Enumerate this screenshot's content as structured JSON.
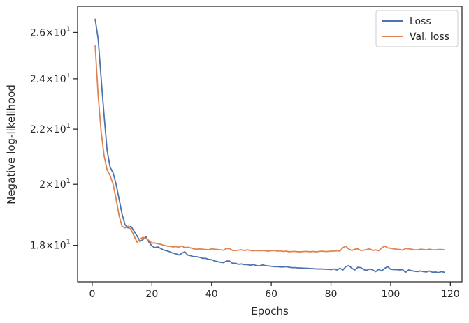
{
  "chart_data": {
    "type": "line",
    "xlabel": "Epochs",
    "ylabel": "Negative log-likelihood",
    "xlim": [
      -4.9,
      123.9
    ],
    "ylim": [
      16.9,
      27.2
    ],
    "yscale": "log",
    "xticks": [
      0,
      20,
      40,
      60,
      80,
      100,
      120
    ],
    "xtick_labels": [
      "0",
      "20",
      "40",
      "60",
      "80",
      "100",
      "120"
    ],
    "yticks": [
      18,
      20,
      22,
      24,
      26
    ],
    "ytick_labels": [
      {
        "mant": "1.8",
        "exp": "1"
      },
      {
        "mant": "2",
        "exp": "1"
      },
      {
        "mant": "2.2",
        "exp": "1"
      },
      {
        "mant": "2.4",
        "exp": "1"
      },
      {
        "mant": "2.6",
        "exp": "1"
      }
    ],
    "grid": false,
    "legend_position": "top-right",
    "series": [
      {
        "name": "Loss",
        "color": "#4C72B0",
        "x": [
          1,
          2,
          3,
          4,
          5,
          6,
          7,
          8,
          9,
          10,
          11,
          12,
          13,
          14,
          15,
          16,
          17,
          18,
          19,
          20,
          21,
          22,
          23,
          24,
          25,
          26,
          27,
          28,
          29,
          30,
          31,
          32,
          33,
          34,
          35,
          36,
          37,
          38,
          39,
          40,
          41,
          42,
          43,
          44,
          45,
          46,
          47,
          48,
          49,
          50,
          51,
          52,
          53,
          54,
          55,
          56,
          57,
          58,
          59,
          60,
          61,
          62,
          63,
          64,
          65,
          66,
          67,
          68,
          69,
          70,
          71,
          72,
          73,
          74,
          75,
          76,
          77,
          78,
          79,
          80,
          81,
          82,
          83,
          84,
          85,
          86,
          87,
          88,
          89,
          90,
          91,
          92,
          93,
          94,
          95,
          96,
          97,
          98,
          99,
          100,
          101,
          102,
          103,
          104,
          105,
          106,
          107,
          108,
          109,
          110,
          111,
          112,
          113,
          114,
          115,
          116,
          117,
          118
        ],
        "values": [
          26.6,
          25.7,
          24.0,
          22.5,
          21.2,
          20.6,
          20.4,
          20.0,
          19.5,
          19.0,
          18.65,
          18.55,
          18.6,
          18.45,
          18.3,
          18.12,
          18.18,
          18.27,
          18.1,
          17.98,
          17.93,
          17.95,
          17.9,
          17.85,
          17.83,
          17.8,
          17.76,
          17.74,
          17.7,
          17.75,
          17.8,
          17.7,
          17.68,
          17.65,
          17.65,
          17.63,
          17.6,
          17.6,
          17.57,
          17.56,
          17.52,
          17.5,
          17.48,
          17.47,
          17.52,
          17.52,
          17.45,
          17.45,
          17.42,
          17.43,
          17.41,
          17.41,
          17.39,
          17.41,
          17.38,
          17.37,
          17.4,
          17.38,
          17.37,
          17.36,
          17.35,
          17.35,
          17.34,
          17.34,
          17.35,
          17.33,
          17.32,
          17.32,
          17.31,
          17.31,
          17.3,
          17.3,
          17.29,
          17.29,
          17.28,
          17.28,
          17.28,
          17.27,
          17.27,
          17.26,
          17.28,
          17.25,
          17.3,
          17.25,
          17.35,
          17.38,
          17.3,
          17.25,
          17.33,
          17.32,
          17.26,
          17.24,
          17.28,
          17.25,
          17.2,
          17.27,
          17.22,
          17.3,
          17.35,
          17.27,
          17.26,
          17.26,
          17.25,
          17.26,
          17.18,
          17.25,
          17.23,
          17.21,
          17.2,
          17.22,
          17.2,
          17.19,
          17.22,
          17.18,
          17.19,
          17.17,
          17.2,
          17.18
        ]
      },
      {
        "name": "Val. loss",
        "color": "#DD8452",
        "x": [
          1,
          2,
          3,
          4,
          5,
          6,
          7,
          8,
          9,
          10,
          11,
          12,
          13,
          14,
          15,
          16,
          17,
          18,
          19,
          20,
          21,
          22,
          23,
          24,
          25,
          26,
          27,
          28,
          29,
          30,
          31,
          32,
          33,
          34,
          35,
          36,
          37,
          38,
          39,
          40,
          41,
          42,
          43,
          44,
          45,
          46,
          47,
          48,
          49,
          50,
          51,
          52,
          53,
          54,
          55,
          56,
          57,
          58,
          59,
          60,
          61,
          62,
          63,
          64,
          65,
          66,
          67,
          68,
          69,
          70,
          71,
          72,
          73,
          74,
          75,
          76,
          77,
          78,
          79,
          80,
          81,
          82,
          83,
          84,
          85,
          86,
          87,
          88,
          89,
          90,
          91,
          92,
          93,
          94,
          95,
          96,
          97,
          98,
          99,
          100,
          101,
          102,
          103,
          104,
          105,
          106,
          107,
          108,
          109,
          110,
          111,
          112,
          113,
          114,
          115,
          116,
          117,
          118
        ],
        "values": [
          25.4,
          23.3,
          21.9,
          21.0,
          20.5,
          20.3,
          20.0,
          19.5,
          18.95,
          18.6,
          18.55,
          18.6,
          18.5,
          18.3,
          18.1,
          18.2,
          18.25,
          18.22,
          18.15,
          18.07,
          18.07,
          18.05,
          18.03,
          18.0,
          17.98,
          17.97,
          17.95,
          17.96,
          17.94,
          17.98,
          17.93,
          17.94,
          17.92,
          17.89,
          17.88,
          17.89,
          17.88,
          17.87,
          17.86,
          17.89,
          17.88,
          17.87,
          17.86,
          17.85,
          17.9,
          17.9,
          17.84,
          17.84,
          17.85,
          17.86,
          17.84,
          17.86,
          17.84,
          17.83,
          17.84,
          17.83,
          17.84,
          17.83,
          17.82,
          17.83,
          17.84,
          17.82,
          17.83,
          17.81,
          17.82,
          17.8,
          17.81,
          17.81,
          17.8,
          17.8,
          17.81,
          17.81,
          17.8,
          17.81,
          17.8,
          17.81,
          17.82,
          17.81,
          17.81,
          17.82,
          17.82,
          17.83,
          17.82,
          17.93,
          17.97,
          17.88,
          17.84,
          17.88,
          17.89,
          17.84,
          17.85,
          17.87,
          17.89,
          17.84,
          17.86,
          17.83,
          17.92,
          17.98,
          17.92,
          17.91,
          17.89,
          17.88,
          17.87,
          17.85,
          17.9,
          17.89,
          17.88,
          17.86,
          17.86,
          17.88,
          17.87,
          17.86,
          17.88,
          17.86,
          17.86,
          17.87,
          17.87,
          17.86
        ]
      }
    ]
  }
}
